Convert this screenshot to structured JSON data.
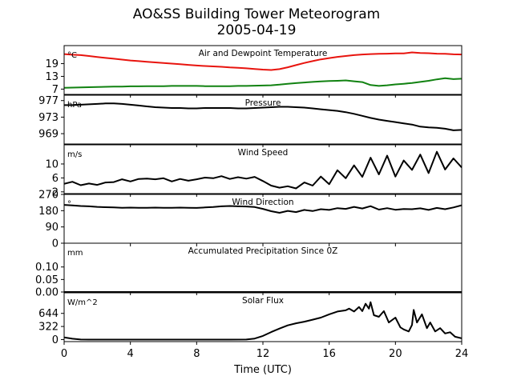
{
  "figure": {
    "title_line1": "AO&SS Building Tower Meteorogram",
    "title_line2": "2005-04-19",
    "xlabel": "Time (UTC)",
    "x_ticks": [
      0,
      4,
      8,
      12,
      16,
      20,
      24
    ],
    "xlim": [
      0,
      24
    ]
  },
  "chart_data": [
    {
      "type": "line",
      "title": "Air and Dewpoint Temperature",
      "unit_label": "°C",
      "ylim": [
        4.5,
        27.5
      ],
      "y_ticks": [
        7,
        13,
        19
      ],
      "series": [
        {
          "color": "#e8140e",
          "x": [
            0,
            0.5,
            1,
            1.5,
            2,
            2.5,
            3,
            3.5,
            4,
            4.5,
            5,
            5.5,
            6,
            6.5,
            7,
            7.5,
            8,
            8.5,
            9,
            9.5,
            10,
            10.5,
            11,
            11.5,
            12,
            12.5,
            13,
            13.5,
            14,
            14.5,
            15,
            15.5,
            16,
            16.5,
            17,
            17.5,
            18,
            18.5,
            19,
            19.5,
            20,
            20.5,
            21,
            21.5,
            22,
            22.5,
            23,
            23.5,
            24
          ],
          "values": [
            23.5,
            23.2,
            23.0,
            22.6,
            22.1,
            21.7,
            21.3,
            20.9,
            20.5,
            20.2,
            19.9,
            19.6,
            19.3,
            19.0,
            18.7,
            18.4,
            18.1,
            17.9,
            17.7,
            17.5,
            17.2,
            17.0,
            16.8,
            16.5,
            16.2,
            16.0,
            16.4,
            17.3,
            18.3,
            19.3,
            20.2,
            21.0,
            21.6,
            22.2,
            22.6,
            23.0,
            23.3,
            23.5,
            23.6,
            23.7,
            23.8,
            23.8,
            24.3,
            24.0,
            23.9,
            23.7,
            23.6,
            23.4,
            23.3
          ]
        },
        {
          "color": "#118211",
          "x": [
            0,
            0.5,
            1,
            1.5,
            2,
            2.5,
            3,
            3.5,
            4,
            4.5,
            5,
            5.5,
            6,
            6.5,
            7,
            7.5,
            8,
            8.5,
            9,
            9.5,
            10,
            10.5,
            11,
            11.5,
            12,
            12.5,
            13,
            13.5,
            14,
            14.5,
            15,
            15.5,
            16,
            16.5,
            17,
            17.5,
            18,
            18.5,
            19,
            19.5,
            20,
            20.5,
            21,
            21.5,
            22,
            22.5,
            23,
            23.5,
            24
          ],
          "values": [
            7.6,
            7.7,
            7.8,
            7.9,
            8.0,
            8.1,
            8.2,
            8.2,
            8.3,
            8.3,
            8.4,
            8.4,
            8.4,
            8.5,
            8.5,
            8.5,
            8.5,
            8.4,
            8.4,
            8.4,
            8.4,
            8.5,
            8.5,
            8.6,
            8.7,
            8.8,
            9.1,
            9.5,
            9.8,
            10.1,
            10.4,
            10.6,
            10.8,
            10.9,
            11.1,
            10.7,
            10.3,
            8.9,
            8.5,
            8.8,
            9.2,
            9.5,
            9.9,
            10.4,
            10.9,
            11.6,
            12.1,
            11.7,
            11.9
          ]
        }
      ]
    },
    {
      "type": "line",
      "title": "Pressure",
      "unit_label": "hPa",
      "ylim": [
        966.5,
        978.3
      ],
      "y_ticks": [
        969,
        973,
        977
      ],
      "series": [
        {
          "color": "#000000",
          "x": [
            0,
            0.5,
            1,
            1.5,
            2,
            2.5,
            3,
            3.5,
            4,
            4.5,
            5,
            5.5,
            6,
            6.5,
            7,
            7.5,
            8,
            8.5,
            9,
            9.5,
            10,
            10.5,
            11,
            11.5,
            12,
            12.5,
            13,
            13.5,
            14,
            14.5,
            15,
            15.5,
            16,
            16.5,
            17,
            17.5,
            18,
            18.5,
            19,
            19.5,
            20,
            20.5,
            21,
            21.5,
            22,
            22.5,
            23,
            23.5,
            24
          ],
          "values": [
            975.9,
            975.9,
            976.0,
            976.1,
            976.2,
            976.3,
            976.3,
            976.2,
            976.0,
            975.8,
            975.6,
            975.4,
            975.3,
            975.2,
            975.2,
            975.1,
            975.1,
            975.2,
            975.2,
            975.2,
            975.2,
            975.1,
            975.1,
            975.2,
            975.3,
            975.4,
            975.5,
            975.5,
            975.4,
            975.3,
            975.1,
            974.9,
            974.7,
            974.5,
            974.2,
            973.8,
            973.3,
            972.8,
            972.4,
            972.1,
            971.8,
            971.5,
            971.2,
            970.7,
            970.5,
            970.4,
            970.2,
            969.8,
            969.9
          ]
        }
      ]
    },
    {
      "type": "line",
      "title": "Wind Speed",
      "unit_label": "m/s",
      "ylim": [
        1.5,
        15.5
      ],
      "y_ticks": [
        2,
        6,
        10
      ],
      "series": [
        {
          "color": "#000000",
          "x": [
            0,
            0.5,
            1,
            1.5,
            2,
            2.5,
            3,
            3.5,
            4,
            4.5,
            5,
            5.5,
            6,
            6.5,
            7,
            7.5,
            8,
            8.5,
            9,
            9.5,
            10,
            10.5,
            11,
            11.5,
            12,
            12.5,
            13,
            13.5,
            14,
            14.5,
            15,
            15.5,
            16,
            16.5,
            17,
            17.5,
            18,
            18.5,
            19,
            19.5,
            20,
            20.5,
            21,
            21.5,
            22,
            22.5,
            23,
            23.5,
            24
          ],
          "values": [
            4.3,
            4.9,
            3.9,
            4.4,
            4.0,
            4.7,
            4.8,
            5.6,
            5.0,
            5.7,
            5.8,
            5.6,
            5.9,
            5.0,
            5.7,
            5.2,
            5.6,
            6.1,
            5.9,
            6.5,
            5.7,
            6.2,
            5.8,
            6.3,
            5.1,
            3.8,
            3.2,
            3.6,
            3.0,
            4.7,
            3.8,
            6.4,
            4.2,
            8.2,
            5.9,
            9.6,
            6.3,
            11.8,
            7.0,
            12.4,
            6.4,
            11.0,
            8.3,
            12.7,
            7.4,
            13.5,
            8.4,
            11.6,
            9.0
          ]
        }
      ]
    },
    {
      "type": "line",
      "title": "Wind Direction",
      "unit_label": "°",
      "ylim": [
        0,
        270
      ],
      "y_ticks": [
        0,
        90,
        180,
        270
      ],
      "series": [
        {
          "color": "#000000",
          "x": [
            0,
            0.5,
            1,
            1.5,
            2,
            2.5,
            3,
            3.5,
            4,
            4.5,
            5,
            5.5,
            6,
            6.5,
            7,
            7.5,
            8,
            8.5,
            9,
            9.5,
            10,
            10.5,
            11,
            11.5,
            12,
            12.5,
            13,
            13.5,
            14,
            14.5,
            15,
            15.5,
            16,
            16.5,
            17,
            17.5,
            18,
            18.5,
            19,
            19.5,
            20,
            20.5,
            21,
            21.5,
            22,
            22.5,
            23,
            23.5,
            24
          ],
          "values": [
            212,
            209,
            206,
            204,
            201,
            199,
            198,
            196,
            197,
            196,
            196,
            197,
            196,
            196,
            197,
            196,
            195,
            198,
            200,
            204,
            206,
            204,
            203,
            200,
            190,
            177,
            168,
            179,
            172,
            184,
            178,
            188,
            184,
            194,
            190,
            201,
            192,
            205,
            186,
            194,
            185,
            189,
            188,
            193,
            184,
            195,
            188,
            198,
            210
          ]
        }
      ]
    },
    {
      "type": "line",
      "title": "Accumulated Precipitation Since 0Z",
      "unit_label": "mm",
      "ylim": [
        0,
        0.195
      ],
      "y_ticks": [
        0.0,
        0.05,
        0.1
      ],
      "y_tick_labels": [
        "0.00",
        "0.05",
        "0.10"
      ],
      "series": [
        {
          "color": "#000000",
          "x": [
            0,
            24
          ],
          "values": [
            0,
            0
          ]
        }
      ]
    },
    {
      "type": "line",
      "title": "Solar Flux",
      "unit_label": "W/m^2",
      "ylim": [
        -50,
        1150
      ],
      "y_ticks": [
        0,
        322,
        644
      ],
      "series": [
        {
          "color": "#000000",
          "x": [
            0,
            0.5,
            1,
            1.5,
            2,
            3,
            4,
            5,
            6,
            7,
            8,
            9,
            10,
            11,
            11.5,
            12,
            12.5,
            13,
            13.5,
            14,
            14.5,
            15,
            15.5,
            16,
            16.5,
            17,
            17.2,
            17.5,
            17.8,
            18,
            18.2,
            18.4,
            18.5,
            18.7,
            19,
            19.3,
            19.6,
            20,
            20.3,
            20.5,
            20.8,
            21,
            21.1,
            21.3,
            21.6,
            21.9,
            22.1,
            22.4,
            22.7,
            23,
            23.3,
            23.6,
            24
          ],
          "values": [
            55,
            20,
            2,
            0,
            0,
            0,
            0,
            0,
            0,
            0,
            0,
            0,
            0,
            2,
            25,
            90,
            185,
            270,
            350,
            400,
            440,
            490,
            540,
            620,
            690,
            720,
            760,
            690,
            800,
            700,
            880,
            760,
            920,
            600,
            560,
            700,
            420,
            540,
            300,
            250,
            200,
            360,
            730,
            420,
            620,
            280,
            420,
            200,
            280,
            150,
            180,
            70,
            30
          ]
        }
      ]
    }
  ]
}
